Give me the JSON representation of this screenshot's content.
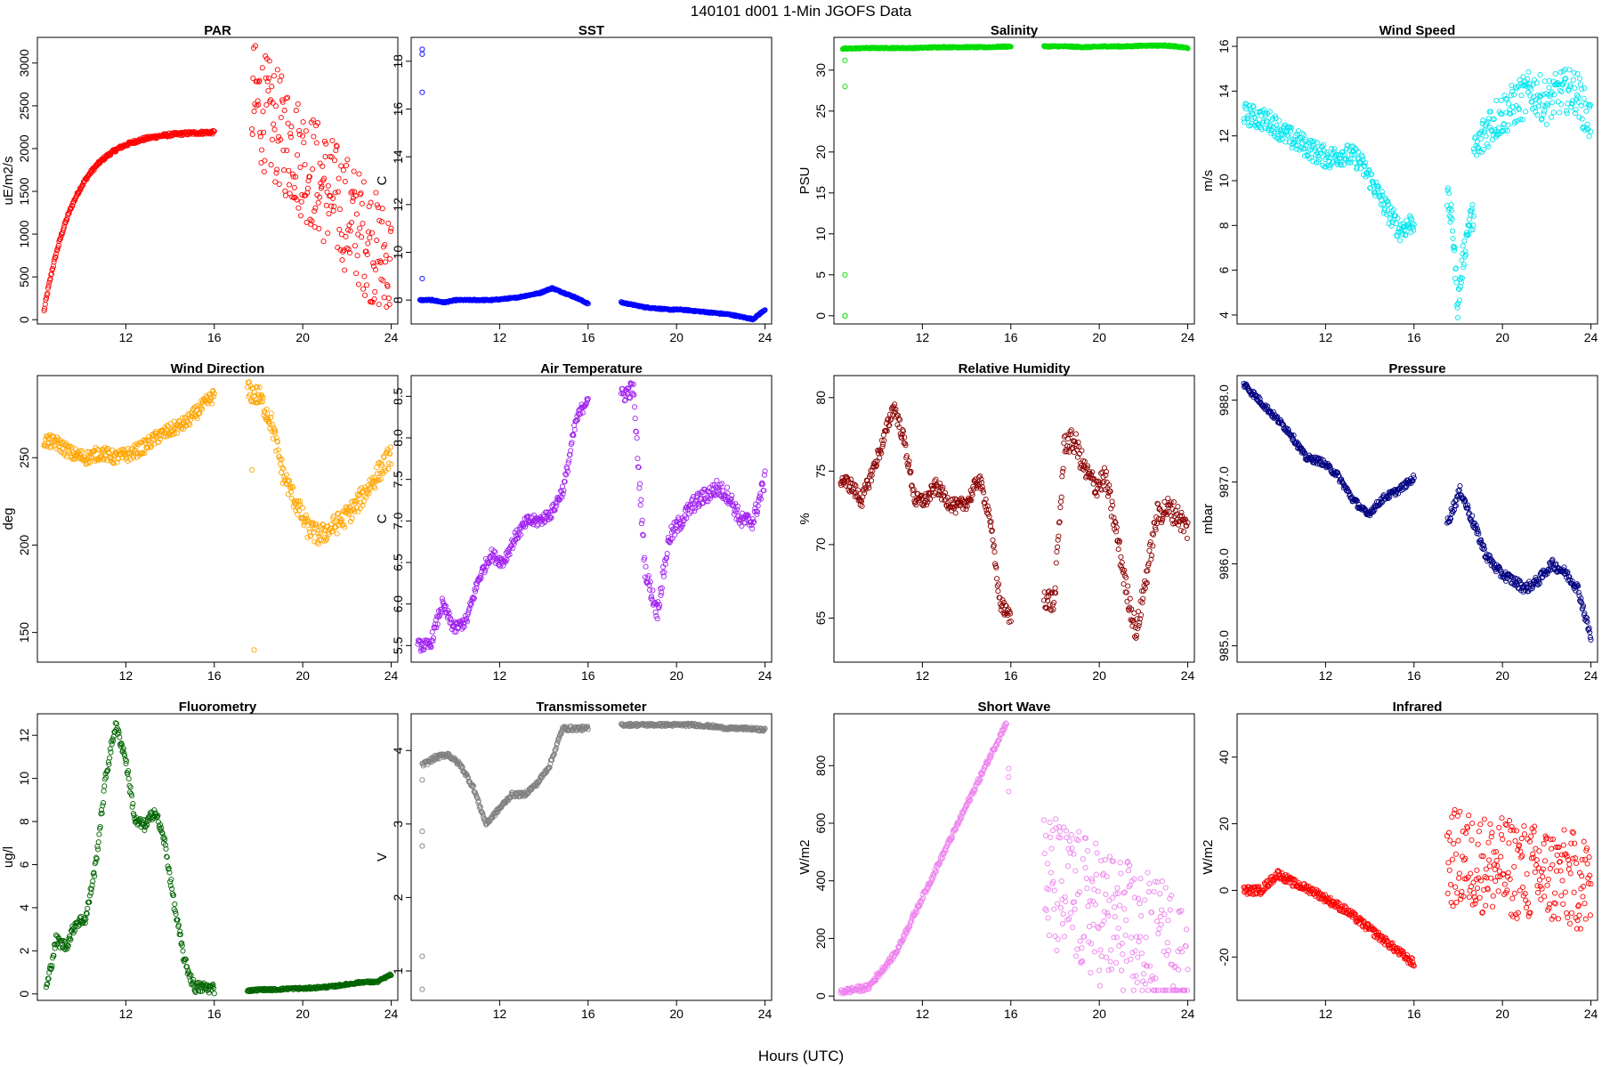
{
  "figure": {
    "title": "140101   d001   1-Min  JGOFS Data",
    "xlabel": "Hours (UTC)"
  },
  "chart_data": [
    {
      "type": "scatter",
      "title": "PAR",
      "ylabel": "uE/m2/s",
      "color": "#ff0000",
      "xlim": [
        8,
        24.3
      ],
      "ylim": [
        -50,
        3300
      ],
      "yticks": [
        0,
        500,
        1000,
        1500,
        2000,
        2500,
        3000
      ],
      "xticks": [
        12,
        16,
        20,
        24
      ],
      "segments": [
        {
          "x0": 8.3,
          "x1": 16.0,
          "kind": "sat",
          "a": 100,
          "b": 2200,
          "k": 0.5,
          "noise": 40
        },
        {
          "x0": 17.7,
          "x1": 24.0,
          "kind": "rand",
          "lo": 150,
          "hi": 3200,
          "trend": [
            2600,
            600
          ],
          "noise": 700
        }
      ]
    },
    {
      "type": "scatter",
      "title": "SST",
      "ylabel": "C",
      "color": "#0000ff",
      "xlim": [
        8,
        24.3
      ],
      "ylim": [
        7.0,
        19.0
      ],
      "yticks": [
        8,
        10,
        12,
        14,
        16,
        18
      ],
      "xticks": [
        12,
        16,
        20,
        24
      ],
      "segments": [
        {
          "x0": 8.4,
          "x1": 16.0,
          "kind": "pts",
          "ys": [
            8.0,
            8.0,
            7.9,
            8.0,
            8.0,
            8.0,
            8.0,
            8.05,
            8.1,
            8.2,
            8.3,
            8.5,
            8.3,
            8.1,
            7.85
          ]
        },
        {
          "x0": 17.5,
          "x1": 24.0,
          "kind": "pts",
          "ys": [
            7.9,
            7.8,
            7.7,
            7.65,
            7.6,
            7.6,
            7.55,
            7.5,
            7.45,
            7.4,
            7.3,
            7.2,
            7.6
          ]
        }
      ],
      "outliers": [
        [
          8.5,
          18.5
        ],
        [
          8.5,
          18.3
        ],
        [
          8.5,
          16.7
        ],
        [
          8.5,
          8.9
        ]
      ]
    },
    {
      "type": "scatter",
      "title": "Salinity",
      "ylabel": "PSU",
      "color": "#00dd00",
      "xlim": [
        8,
        24.3
      ],
      "ylim": [
        -1,
        34
      ],
      "yticks": [
        0,
        5,
        10,
        15,
        20,
        25,
        30
      ],
      "xticks": [
        12,
        16,
        20,
        24
      ],
      "segments": [
        {
          "x0": 8.4,
          "x1": 16.0,
          "kind": "pts",
          "ys": [
            32.6,
            32.7,
            32.7,
            32.7,
            32.8,
            32.8,
            32.8,
            32.9
          ]
        },
        {
          "x0": 17.5,
          "x1": 24.0,
          "kind": "pts",
          "ys": [
            32.9,
            32.9,
            32.8,
            32.9,
            32.9,
            33.0,
            33.0,
            32.7
          ]
        }
      ],
      "outliers": [
        [
          8.5,
          31.2
        ],
        [
          8.5,
          28.0
        ],
        [
          8.5,
          5.0
        ],
        [
          8.5,
          0.0
        ],
        [
          8.5,
          0.0
        ]
      ]
    },
    {
      "type": "scatter",
      "title": "Wind Speed",
      "ylabel": "m/s",
      "color": "#00e5ee",
      "xlim": [
        8,
        24.3
      ],
      "ylim": [
        3.6,
        16.4
      ],
      "yticks": [
        4,
        6,
        8,
        10,
        12,
        14,
        16
      ],
      "xticks": [
        12,
        16,
        20,
        24
      ],
      "segments": [
        {
          "x0": 8.3,
          "x1": 16.0,
          "kind": "pts",
          "ys": [
            13.0,
            12.8,
            12.6,
            12.0,
            11.7,
            11.3,
            11.0,
            11.2,
            11.0,
            10.0,
            8.8,
            7.8,
            8.2
          ],
          "noise": 0.5
        },
        {
          "x0": 17.5,
          "x1": 18.7,
          "kind": "pts",
          "ys": [
            9.3,
            8.0,
            4.4,
            6.5,
            8.0,
            8.5
          ],
          "noise": 0.6
        },
        {
          "x0": 18.7,
          "x1": 24.0,
          "kind": "pts",
          "ys": [
            11.0,
            12.5,
            13.0,
            13.5,
            14.0,
            13.5,
            14.0,
            14.0,
            12.5
          ],
          "noise": 1.0
        }
      ]
    },
    {
      "type": "scatter",
      "title": "Wind Direction",
      "ylabel": "deg",
      "color": "#ffa500",
      "xlim": [
        8,
        24.3
      ],
      "ylim": [
        133,
        297
      ],
      "yticks": [
        150,
        200,
        250
      ],
      "xticks": [
        12,
        16,
        20,
        24
      ],
      "segments": [
        {
          "x0": 8.3,
          "x1": 16.0,
          "kind": "pts",
          "ys": [
            260,
            258,
            252,
            250,
            253,
            250,
            252,
            256,
            262,
            266,
            270,
            278,
            286
          ],
          "noise": 4
        },
        {
          "x0": 17.5,
          "x1": 24.0,
          "kind": "pts",
          "ys": [
            288,
            285,
            270,
            240,
            225,
            210,
            205,
            210,
            215,
            222,
            232,
            242,
            252
          ],
          "noise": 6
        }
      ],
      "outliers": [
        [
          17.8,
          140
        ],
        [
          17.7,
          243
        ]
      ]
    },
    {
      "type": "scatter",
      "title": "Air Temperature",
      "ylabel": "C",
      "color": "#a020f0",
      "xlim": [
        8,
        24.3
      ],
      "ylim": [
        5.3,
        8.75
      ],
      "yticks": [
        5.5,
        6.0,
        6.5,
        7.0,
        7.5,
        8.0,
        8.5
      ],
      "xticks": [
        12,
        16,
        20,
        24
      ],
      "segments": [
        {
          "x0": 8.3,
          "x1": 16.0,
          "kind": "pts",
          "ys": [
            5.5,
            5.5,
            6.0,
            5.7,
            5.8,
            6.3,
            6.6,
            6.5,
            6.8,
            7.0,
            7.0,
            7.1,
            7.4,
            8.2,
            8.5
          ],
          "noise": 0.07
        },
        {
          "x0": 17.5,
          "x1": 24.0,
          "kind": "pts",
          "ys": [
            8.5,
            8.6,
            6.4,
            5.9,
            6.8,
            7.0,
            7.2,
            7.3,
            7.4,
            7.3,
            7.0,
            7.0,
            7.5
          ],
          "noise": 0.1
        }
      ]
    },
    {
      "type": "scatter",
      "title": "Relative Humidity",
      "ylabel": "%",
      "color": "#8b0000",
      "xlim": [
        8,
        24.3
      ],
      "ylim": [
        62,
        81.5
      ],
      "yticks": [
        65,
        70,
        75,
        80
      ],
      "xticks": [
        12,
        16,
        20,
        24
      ],
      "segments": [
        {
          "x0": 8.3,
          "x1": 16.0,
          "kind": "pts",
          "ys": [
            74.5,
            74,
            73,
            75,
            77,
            79.5,
            77,
            73,
            73,
            74,
            73,
            72.5,
            73,
            74.5,
            72,
            66,
            65
          ],
          "noise": 0.5
        },
        {
          "x0": 17.5,
          "x1": 24.0,
          "kind": "pts",
          "ys": [
            66.5,
            66,
            77,
            77,
            75,
            74,
            74.5,
            71,
            67,
            64,
            68,
            72,
            72.5,
            72,
            71
          ],
          "noise": 0.8
        }
      ]
    },
    {
      "type": "scatter",
      "title": "Pressure",
      "ylabel": "mbar",
      "color": "#000080",
      "xlim": [
        8,
        24.3
      ],
      "ylim": [
        984.8,
        988.3
      ],
      "yticks": [
        985.0,
        986.0,
        987.0,
        988.0
      ],
      "xticks": [
        12,
        16,
        20,
        24
      ],
      "segments": [
        {
          "x0": 8.3,
          "x1": 16.0,
          "kind": "pts",
          "ys": [
            988.2,
            988.0,
            987.8,
            987.6,
            987.3,
            987.25,
            987.1,
            986.8,
            986.6,
            986.8,
            986.9,
            987.05
          ],
          "noise": 0.04
        },
        {
          "x0": 17.5,
          "x1": 24.0,
          "kind": "pts",
          "ys": [
            986.5,
            986.9,
            986.5,
            986.1,
            985.9,
            985.8,
            985.7,
            985.8,
            986.0,
            985.9,
            985.7,
            985.1
          ],
          "noise": 0.06
        }
      ]
    },
    {
      "type": "scatter",
      "title": "Fluorometry",
      "ylabel": "ug/l",
      "color": "#006400",
      "xlim": [
        8,
        24.3
      ],
      "ylim": [
        -0.3,
        13.0
      ],
      "yticks": [
        0,
        2,
        4,
        6,
        8,
        10,
        12
      ],
      "xticks": [
        12,
        16,
        20,
        24
      ],
      "segments": [
        {
          "x0": 8.4,
          "x1": 16.0,
          "kind": "pts",
          "ys": [
            0.2,
            2.5,
            2.2,
            3.3,
            3.5,
            6.0,
            10.0,
            12.5,
            11.0,
            8.0,
            7.8,
            8.5,
            7.0,
            4.0,
            1.5,
            0.3,
            0.3,
            0.25
          ],
          "noise": 0.25
        },
        {
          "x0": 17.5,
          "x1": 24.0,
          "kind": "pts",
          "ys": [
            0.15,
            0.2,
            0.2,
            0.25,
            0.25,
            0.3,
            0.35,
            0.45,
            0.55,
            0.55,
            0.9
          ],
          "noise": 0.05
        }
      ]
    },
    {
      "type": "scatter",
      "title": "Transmissometer",
      "ylabel": "V",
      "color": "#808080",
      "xlim": [
        8,
        24.3
      ],
      "ylim": [
        0.6,
        4.5
      ],
      "yticks": [
        1,
        2,
        3,
        4
      ],
      "xticks": [
        12,
        16,
        20,
        24
      ],
      "segments": [
        {
          "x0": 8.5,
          "x1": 16.0,
          "kind": "pts",
          "ys": [
            3.8,
            3.9,
            3.95,
            3.8,
            3.5,
            3.0,
            3.2,
            3.4,
            3.4,
            3.55,
            3.8,
            4.3,
            4.3,
            4.3
          ],
          "noise": 0.03
        },
        {
          "x0": 17.5,
          "x1": 24.0,
          "kind": "pts",
          "ys": [
            4.35,
            4.35,
            4.35,
            4.35,
            4.35,
            4.33,
            4.3,
            4.3,
            4.28
          ],
          "noise": 0.02
        }
      ],
      "outliers": [
        [
          8.5,
          0.75
        ],
        [
          8.5,
          1.2
        ],
        [
          8.5,
          2.7
        ],
        [
          8.5,
          2.9
        ],
        [
          8.5,
          3.6
        ]
      ]
    },
    {
      "type": "scatter",
      "title": "Short Wave",
      "ylabel": "W/m2",
      "color": "#ee82ee",
      "xlim": [
        8,
        24.3
      ],
      "ylim": [
        -15,
        980
      ],
      "yticks": [
        0,
        200,
        400,
        600,
        800
      ],
      "xticks": [
        12,
        16,
        20,
        24
      ],
      "segments": [
        {
          "x0": 8.3,
          "x1": 15.8,
          "kind": "pts",
          "ys": [
            15,
            30,
            150,
            350,
            550,
            750,
            950
          ],
          "noise": 10
        },
        {
          "x0": 17.5,
          "x1": 24.0,
          "kind": "rand",
          "lo": 20,
          "hi": 900,
          "trend": [
            400,
            100
          ],
          "noise": 250
        }
      ],
      "outliers": [
        [
          15.9,
          790
        ],
        [
          15.9,
          710
        ],
        [
          15.9,
          760
        ]
      ]
    },
    {
      "type": "scatter",
      "title": "Infrared",
      "ylabel": "W/m2",
      "color": "#ff0000",
      "xlim": [
        8,
        24.3
      ],
      "ylim": [
        -33,
        53
      ],
      "yticks": [
        -20,
        0,
        20,
        40
      ],
      "xticks": [
        12,
        16,
        20,
        24
      ],
      "segments": [
        {
          "x0": 8.3,
          "x1": 16.0,
          "kind": "pts",
          "ys": [
            0,
            0,
            5,
            2,
            0,
            -3,
            -6,
            -10,
            -14,
            -18,
            -22
          ],
          "noise": 1.2
        },
        {
          "x0": 17.5,
          "x1": 24.0,
          "kind": "rand",
          "lo": -30,
          "hi": 50,
          "trend": [
            10,
            2
          ],
          "noise": 15
        }
      ]
    }
  ]
}
